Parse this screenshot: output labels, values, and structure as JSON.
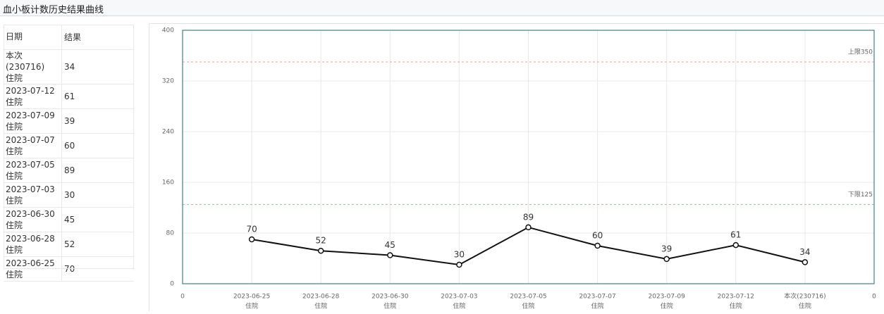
{
  "title": "血小板计数历史结果曲线",
  "table": {
    "headers": [
      "日期",
      "结果"
    ],
    "rows": [
      [
        [
          "本次(230716)",
          "住院"
        ],
        34
      ],
      [
        [
          "2023-07-12",
          "住院"
        ],
        61
      ],
      [
        [
          "2023-07-09",
          "住院"
        ],
        39
      ],
      [
        [
          "2023-07-07",
          "住院"
        ],
        60
      ],
      [
        [
          "2023-07-05",
          "住院"
        ],
        89
      ],
      [
        [
          "2023-07-03",
          "住院"
        ],
        30
      ],
      [
        [
          "2023-06-30",
          "住院"
        ],
        45
      ],
      [
        [
          "2023-06-28",
          "住院"
        ],
        52
      ],
      [
        [
          "2023-06-25",
          "住院"
        ],
        70
      ]
    ]
  },
  "chart_data": {
    "type": "line",
    "categories": [
      [
        "2023-06-25",
        "住院"
      ],
      [
        "2023-06-28",
        "住院"
      ],
      [
        "2023-06-30",
        "住院"
      ],
      [
        "2023-07-03",
        "住院"
      ],
      [
        "2023-07-05",
        "住院"
      ],
      [
        "2023-07-07",
        "住院"
      ],
      [
        "2023-07-09",
        "住院"
      ],
      [
        "2023-07-12",
        "住院"
      ],
      [
        "本次(230716)",
        "住院"
      ]
    ],
    "x_edge_labels": [
      "0",
      "0"
    ],
    "values": [
      70,
      52,
      45,
      30,
      89,
      60,
      39,
      61,
      34
    ],
    "color": "#111111",
    "ylim": [
      0,
      400
    ],
    "yticks": [
      0,
      80,
      160,
      240,
      320,
      400
    ],
    "grid": true,
    "reference_lines": [
      {
        "label": "上限350",
        "value": 350,
        "color": "#e8a09a"
      },
      {
        "label": "下限125",
        "value": 125,
        "color": "#8fd08f"
      }
    ]
  }
}
